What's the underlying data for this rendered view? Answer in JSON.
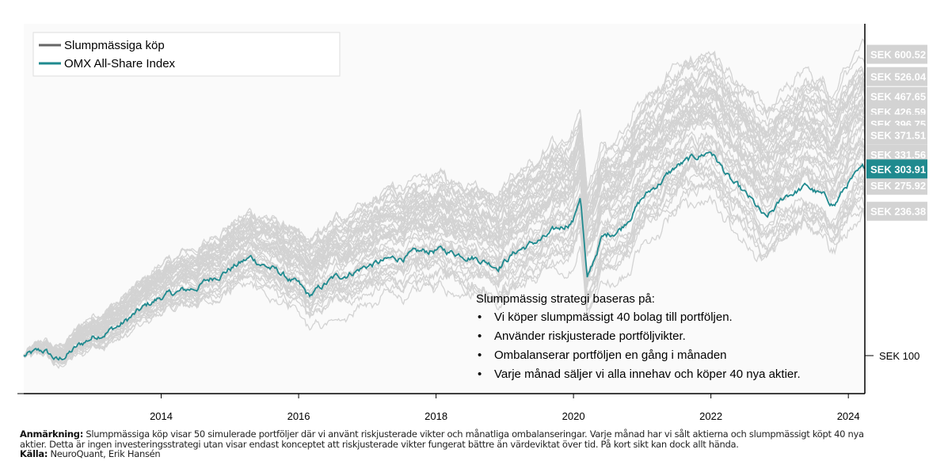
{
  "chart_data": {
    "type": "line",
    "yscale": "log",
    "xlim": [
      2012.0,
      2024.24
    ],
    "ylim": [
      80,
      720
    ],
    "x_ticks": [
      2014,
      2016,
      2018,
      2020,
      2022,
      2024
    ],
    "x_tick_labels": [
      "2014",
      "2016",
      "2018",
      "2020",
      "2022",
      "2024"
    ],
    "baseline": {
      "value": 100,
      "label": "SEK 100"
    },
    "legend": {
      "placement": "top-left",
      "entries": [
        "Slumpmässiga köp",
        "OMX All-Share Index"
      ]
    },
    "series": [
      {
        "name": "OMX All-Share Index",
        "color": "#1f8a8f",
        "x": [
          2012.0,
          2012.3,
          2012.5,
          2012.8,
          2013.0,
          2013.4,
          2013.8,
          2014.0,
          2014.5,
          2014.9,
          2015.3,
          2015.7,
          2016.0,
          2016.15,
          2016.5,
          2017.0,
          2017.5,
          2018.0,
          2018.5,
          2018.9,
          2019.2,
          2019.6,
          2020.0,
          2020.1,
          2020.2,
          2020.4,
          2020.7,
          2021.0,
          2021.5,
          2022.0,
          2022.3,
          2022.6,
          2022.8,
          2023.1,
          2023.4,
          2023.8,
          2024.0,
          2024.24
        ],
        "y": [
          100,
          103,
          97,
          106,
          112,
          120,
          135,
          142,
          150,
          165,
          179,
          165,
          152,
          142,
          158,
          171,
          180,
          188,
          182,
          171,
          188,
          202,
          225,
          261,
          156,
          200,
          215,
          255,
          308,
          339,
          281,
          250,
          224,
          260,
          274,
          246,
          280,
          303.91
        ]
      },
      {
        "name": "Slumpmässiga köp",
        "color": "#d3d3d3",
        "count": 50,
        "end_labels": [
          600.52,
          526.04,
          467.65,
          426.59,
          396.75,
          371.51,
          331.56,
          275.92,
          236.38
        ]
      }
    ],
    "end_label_omx": "SEK 303.91",
    "end_label_texts": [
      "SEK 600.52",
      "SEK 526.04",
      "SEK 467.65",
      "SEK 426.59",
      "SEK 396.75",
      "SEK 371.51",
      "SEK 331.56",
      "SEK 275.92",
      "SEK 236.38"
    ]
  },
  "annotation": {
    "title": "Slumpmässig strategi baseras på:",
    "bullets": [
      "Vi köper slumpmässigt 40 bolag till portföljen.",
      "Använder riskjusterade portföljvikter.",
      "Ombalanserar portföljen en gång i månaden",
      "Varje månad säljer vi alla innehav och köper 40 nya aktier."
    ]
  },
  "footer": {
    "note_label": "Anmärkning:",
    "note_text": " Slumpmässiga köp visar 50 simulerade portföljer där vi använt riskjusterade vikter och månatliga ombalanseringar. Varje månad har vi sålt aktierna och slumpmässigt köpt 40 nya aktier. Detta är ingen investeringsstrategi utan visar endast konceptet att riskjusterade vikter fungerat bättre än värdeviktat över tid. På kort sikt kan dock allt hända.",
    "source_label": "Källa:",
    "source_text": " NeuroQuant, Erik Hansén"
  }
}
